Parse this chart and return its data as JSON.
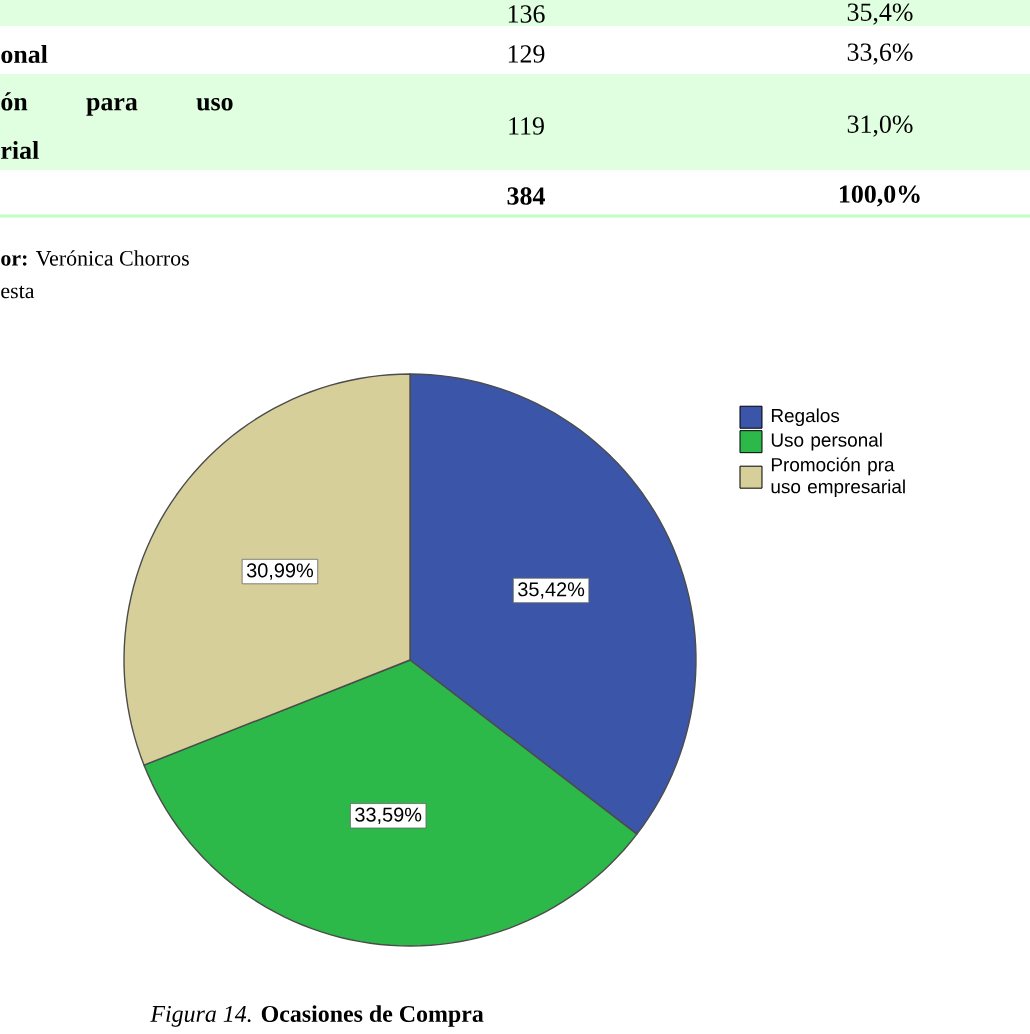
{
  "chart_data": {
    "type": "pie",
    "title": "*Figura 14.* **Ocasiones de Compra**",
    "categories": [
      "Regalos",
      "Uso personal",
      "Promoción pra uso empresarial"
    ],
    "values": [
      35.42,
      33.59,
      30.99
    ],
    "value_labels": [
      "35,42%",
      "33,59%",
      "30,99%"
    ],
    "colors": [
      "#3b55a8",
      "#2db84a",
      "#d6cf9a"
    ],
    "legend": "right",
    "annotations": [
      "136",
      "35,4%",
      "onal",
      "129",
      "33,6%",
      "ón para uso",
      "rial",
      "119",
      "31,0%",
      "384",
      "100,0%",
      "**or:** Verónica Chorros",
      "esta"
    ]
  }
}
